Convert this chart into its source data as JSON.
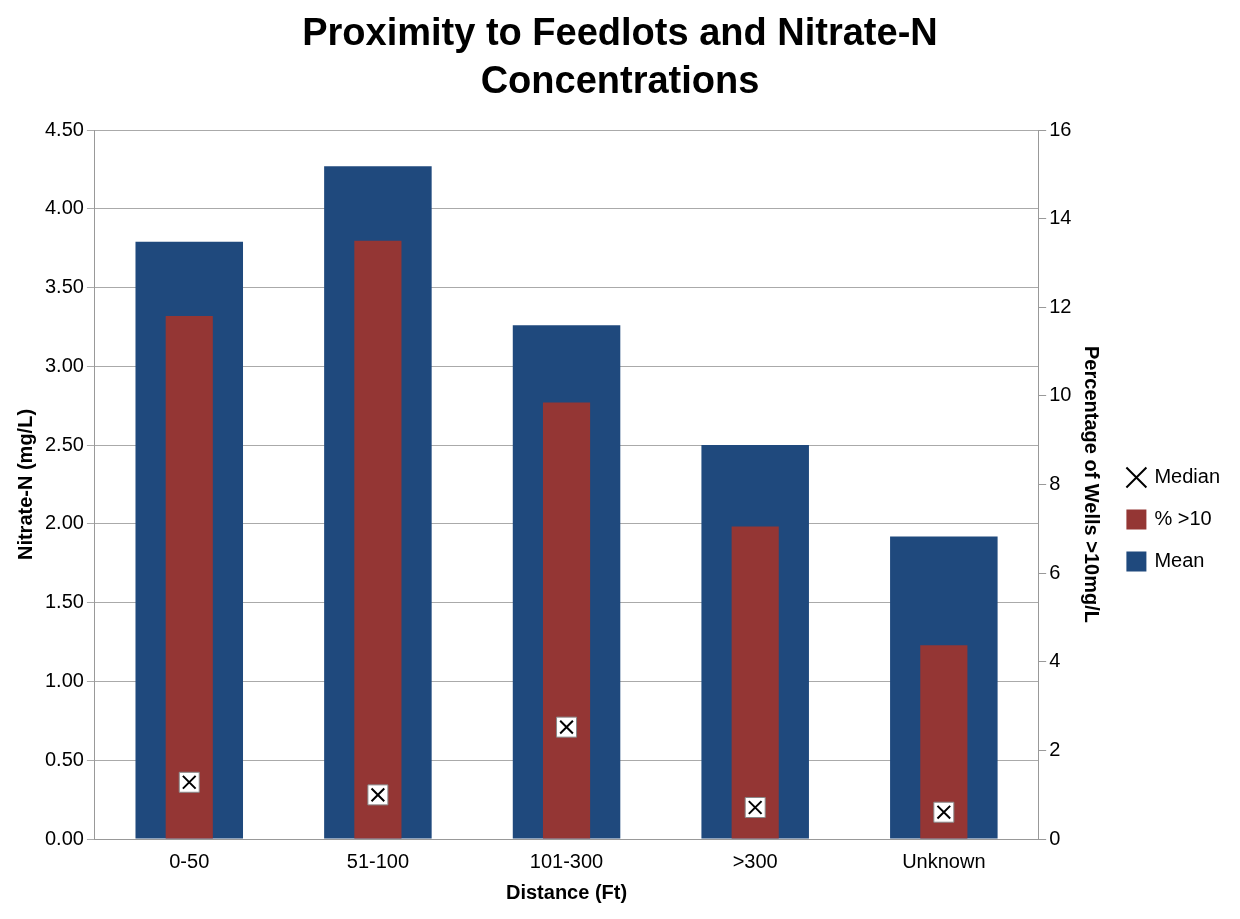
{
  "chart_data": {
    "type": "bar",
    "title": "Proximity to Feedlots and Nitrate-N Concentrations",
    "xlabel": "Distance (Ft)",
    "ylabel": "Nitrate-N (mg/L)",
    "y2label": "Percentage of Wells >10mg/L",
    "categories": [
      "0-50",
      "51-100",
      "101-300",
      ">300",
      "Unknown"
    ],
    "series": [
      {
        "name": "Mean",
        "color": "#1f497d",
        "values": [
          3.79,
          4.27,
          3.26,
          2.5,
          1.92
        ]
      },
      {
        "name": "% >10",
        "color": "#943634",
        "axis": "y2",
        "values": [
          11.8,
          13.5,
          9.85,
          7.05,
          4.37
        ]
      },
      {
        "name": "Median",
        "type": "scatter",
        "marker": "cross",
        "color": "#000000",
        "values": [
          0.36,
          0.28,
          0.71,
          0.2,
          0.17
        ]
      }
    ],
    "ylim": [
      0,
      4.5
    ],
    "yticks": [
      {
        "value": 0,
        "label": "0.00"
      },
      {
        "value": 0.5,
        "label": "0.50"
      },
      {
        "value": 1,
        "label": "1.00"
      },
      {
        "value": 1.5,
        "label": "1.50"
      },
      {
        "value": 2,
        "label": "2.00"
      },
      {
        "value": 2.5,
        "label": "2.50"
      },
      {
        "value": 3,
        "label": "3.00"
      },
      {
        "value": 3.5,
        "label": "3.50"
      },
      {
        "value": 4,
        "label": "4.00"
      },
      {
        "value": 4.5,
        "label": "4.50"
      }
    ],
    "y2lim": [
      0,
      16
    ],
    "y2ticks": [
      0,
      2,
      4,
      6,
      8,
      10,
      12,
      14,
      16
    ],
    "grid": "y",
    "legend": "right"
  }
}
